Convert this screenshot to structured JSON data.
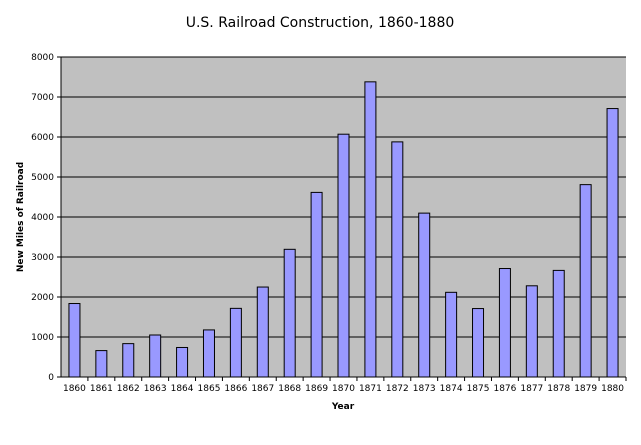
{
  "chart_data": {
    "type": "bar",
    "title": "U.S. Railroad Construction, 1860-1880",
    "xlabel": "Year",
    "ylabel": "New Miles of Railroad",
    "ylim": [
      0,
      8000
    ],
    "yticks": [
      0,
      1000,
      2000,
      3000,
      4000,
      5000,
      6000,
      7000,
      8000
    ],
    "grid": true,
    "legend": "none",
    "categories": [
      "1860",
      "1861",
      "1862",
      "1863",
      "1864",
      "1865",
      "1866",
      "1867",
      "1868",
      "1869",
      "1870",
      "1871",
      "1872",
      "1873",
      "1874",
      "1875",
      "1876",
      "1877",
      "1878",
      "1879",
      "1880"
    ],
    "values": [
      1837,
      660,
      834,
      1050,
      738,
      1177,
      1716,
      2249,
      3192,
      4615,
      6070,
      7379,
      5878,
      4097,
      2117,
      1711,
      2712,
      2280,
      2665,
      4809,
      6711
    ],
    "colors": {
      "bar": "#9999ff",
      "plot_bg": "#c0c0c0",
      "grid": "#000000"
    }
  }
}
